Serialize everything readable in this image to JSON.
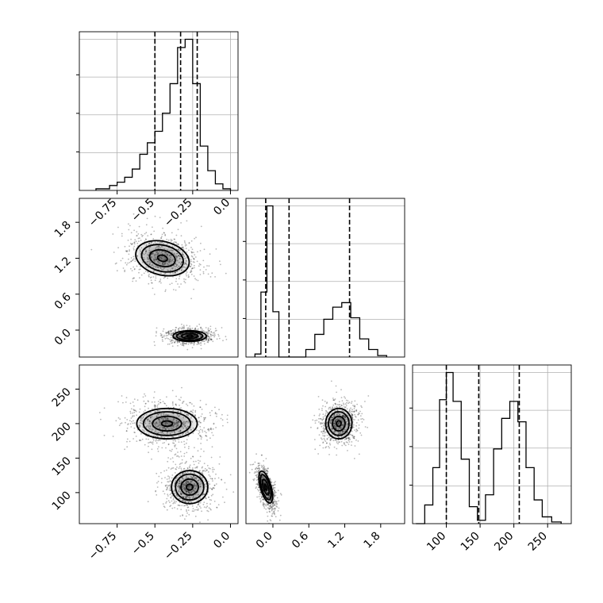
{
  "chart_data": [
    {
      "type": "histogram",
      "panel": "hist-param-1",
      "x_ticks": [
        -0.75,
        -0.5,
        -0.25,
        0.0
      ],
      "xlim": [
        -1.0,
        0.05
      ],
      "quantiles": [
        -0.5,
        -0.33,
        -0.22
      ],
      "bins": [
        {
          "x0": -0.89,
          "x1": -0.85,
          "v": 0.01
        },
        {
          "x0": -0.85,
          "x1": -0.8,
          "v": 0.01
        },
        {
          "x0": -0.8,
          "x1": -0.75,
          "v": 0.03
        },
        {
          "x0": -0.75,
          "x1": -0.7,
          "v": 0.05
        },
        {
          "x0": -0.7,
          "x1": -0.65,
          "v": 0.08
        },
        {
          "x0": -0.65,
          "x1": -0.6,
          "v": 0.13
        },
        {
          "x0": -0.6,
          "x1": -0.55,
          "v": 0.22
        },
        {
          "x0": -0.55,
          "x1": -0.5,
          "v": 0.29
        },
        {
          "x0": -0.5,
          "x1": -0.45,
          "v": 0.36
        },
        {
          "x0": -0.45,
          "x1": -0.4,
          "v": 0.47
        },
        {
          "x0": -0.4,
          "x1": -0.35,
          "v": 0.65
        },
        {
          "x0": -0.35,
          "x1": -0.3,
          "v": 0.87
        },
        {
          "x0": -0.3,
          "x1": -0.25,
          "v": 0.92
        },
        {
          "x0": -0.25,
          "x1": -0.2,
          "v": 0.65
        },
        {
          "x0": -0.2,
          "x1": -0.15,
          "v": 0.27
        },
        {
          "x0": -0.15,
          "x1": -0.1,
          "v": 0.12
        },
        {
          "x0": -0.1,
          "x1": -0.05,
          "v": 0.04
        },
        {
          "x0": -0.05,
          "x1": 0.0,
          "v": 0.01
        }
      ]
    },
    {
      "type": "scatter-density",
      "panel": "joint-param-1-param-2",
      "y_ticks": [
        1.8,
        1.2,
        0.6,
        0.0
      ],
      "xlim": [
        -1.0,
        0.05
      ],
      "ylim": [
        -0.45,
        2.2
      ],
      "clusters": [
        {
          "cx": -0.45,
          "cy": 1.2,
          "rx": 0.18,
          "ry": 0.28,
          "tilt": 0.35
        },
        {
          "cx": -0.27,
          "cy": -0.1,
          "rx": 0.11,
          "ry": 0.09,
          "tilt": 0.0
        }
      ]
    },
    {
      "type": "histogram",
      "panel": "hist-param-2",
      "xlim": [
        -0.45,
        2.2
      ],
      "quantiles": [
        -0.12,
        0.27,
        1.28
      ],
      "bins": [
        {
          "x0": -0.3,
          "x1": -0.2,
          "v": 0.02
        },
        {
          "x0": -0.2,
          "x1": -0.1,
          "v": 0.43
        },
        {
          "x0": -0.1,
          "x1": 0.0,
          "v": 1.0
        },
        {
          "x0": 0.0,
          "x1": 0.1,
          "v": 0.3
        },
        {
          "x0": 0.1,
          "x1": 0.55,
          "v": 0.0
        },
        {
          "x0": 0.55,
          "x1": 0.7,
          "v": 0.05
        },
        {
          "x0": 0.7,
          "x1": 0.85,
          "v": 0.15
        },
        {
          "x0": 0.85,
          "x1": 1.0,
          "v": 0.25
        },
        {
          "x0": 1.0,
          "x1": 1.15,
          "v": 0.33
        },
        {
          "x0": 1.15,
          "x1": 1.3,
          "v": 0.36
        },
        {
          "x0": 1.3,
          "x1": 1.45,
          "v": 0.26
        },
        {
          "x0": 1.45,
          "x1": 1.6,
          "v": 0.12
        },
        {
          "x0": 1.6,
          "x1": 1.75,
          "v": 0.05
        },
        {
          "x0": 1.75,
          "x1": 1.9,
          "v": 0.01
        }
      ]
    },
    {
      "type": "scatter-density",
      "panel": "joint-param-1-param-3",
      "x_ticks": [
        -0.75,
        -0.5,
        -0.25,
        0.0
      ],
      "y_ticks": [
        250,
        200,
        150,
        100
      ],
      "xlim": [
        -1.0,
        0.05
      ],
      "ylim": [
        55,
        285
      ],
      "clusters": [
        {
          "cx": -0.42,
          "cy": 200,
          "rx": 0.2,
          "ry": 22,
          "tilt": 0.0
        },
        {
          "cx": -0.27,
          "cy": 108,
          "rx": 0.12,
          "ry": 24,
          "tilt": 0.0
        }
      ]
    },
    {
      "type": "scatter-density",
      "panel": "joint-param-2-param-3",
      "x_ticks": [
        0.0,
        0.6,
        1.2,
        1.8
      ],
      "xlim": [
        -0.45,
        2.2
      ],
      "ylim": [
        55,
        285
      ],
      "clusters": [
        {
          "cx": 1.1,
          "cy": 200,
          "rx": 0.22,
          "ry": 22,
          "tilt": 0.0
        },
        {
          "cx": -0.12,
          "cy": 108,
          "rx": 0.09,
          "ry": 24,
          "tilt": -0.4
        }
      ]
    },
    {
      "type": "histogram",
      "panel": "hist-param-3",
      "x_ticks": [
        100,
        150,
        200,
        250
      ],
      "xlim": [
        50,
        285
      ],
      "quantiles": [
        100,
        148,
        208
      ],
      "bins": [
        {
          "x0": 55,
          "x1": 68,
          "v": 0.0
        },
        {
          "x0": 68,
          "x1": 80,
          "v": 0.11
        },
        {
          "x0": 80,
          "x1": 90,
          "v": 0.33
        },
        {
          "x0": 90,
          "x1": 100,
          "v": 0.73
        },
        {
          "x0": 100,
          "x1": 110,
          "v": 0.89
        },
        {
          "x0": 110,
          "x1": 122,
          "v": 0.72
        },
        {
          "x0": 122,
          "x1": 134,
          "v": 0.38
        },
        {
          "x0": 134,
          "x1": 146,
          "v": 0.1
        },
        {
          "x0": 146,
          "x1": 158,
          "v": 0.02
        },
        {
          "x0": 158,
          "x1": 170,
          "v": 0.17
        },
        {
          "x0": 170,
          "x1": 182,
          "v": 0.44
        },
        {
          "x0": 182,
          "x1": 194,
          "v": 0.62
        },
        {
          "x0": 194,
          "x1": 206,
          "v": 0.72
        },
        {
          "x0": 206,
          "x1": 218,
          "v": 0.6
        },
        {
          "x0": 218,
          "x1": 230,
          "v": 0.33
        },
        {
          "x0": 230,
          "x1": 242,
          "v": 0.14
        },
        {
          "x0": 242,
          "x1": 256,
          "v": 0.04
        },
        {
          "x0": 256,
          "x1": 270,
          "v": 0.01
        }
      ]
    }
  ]
}
